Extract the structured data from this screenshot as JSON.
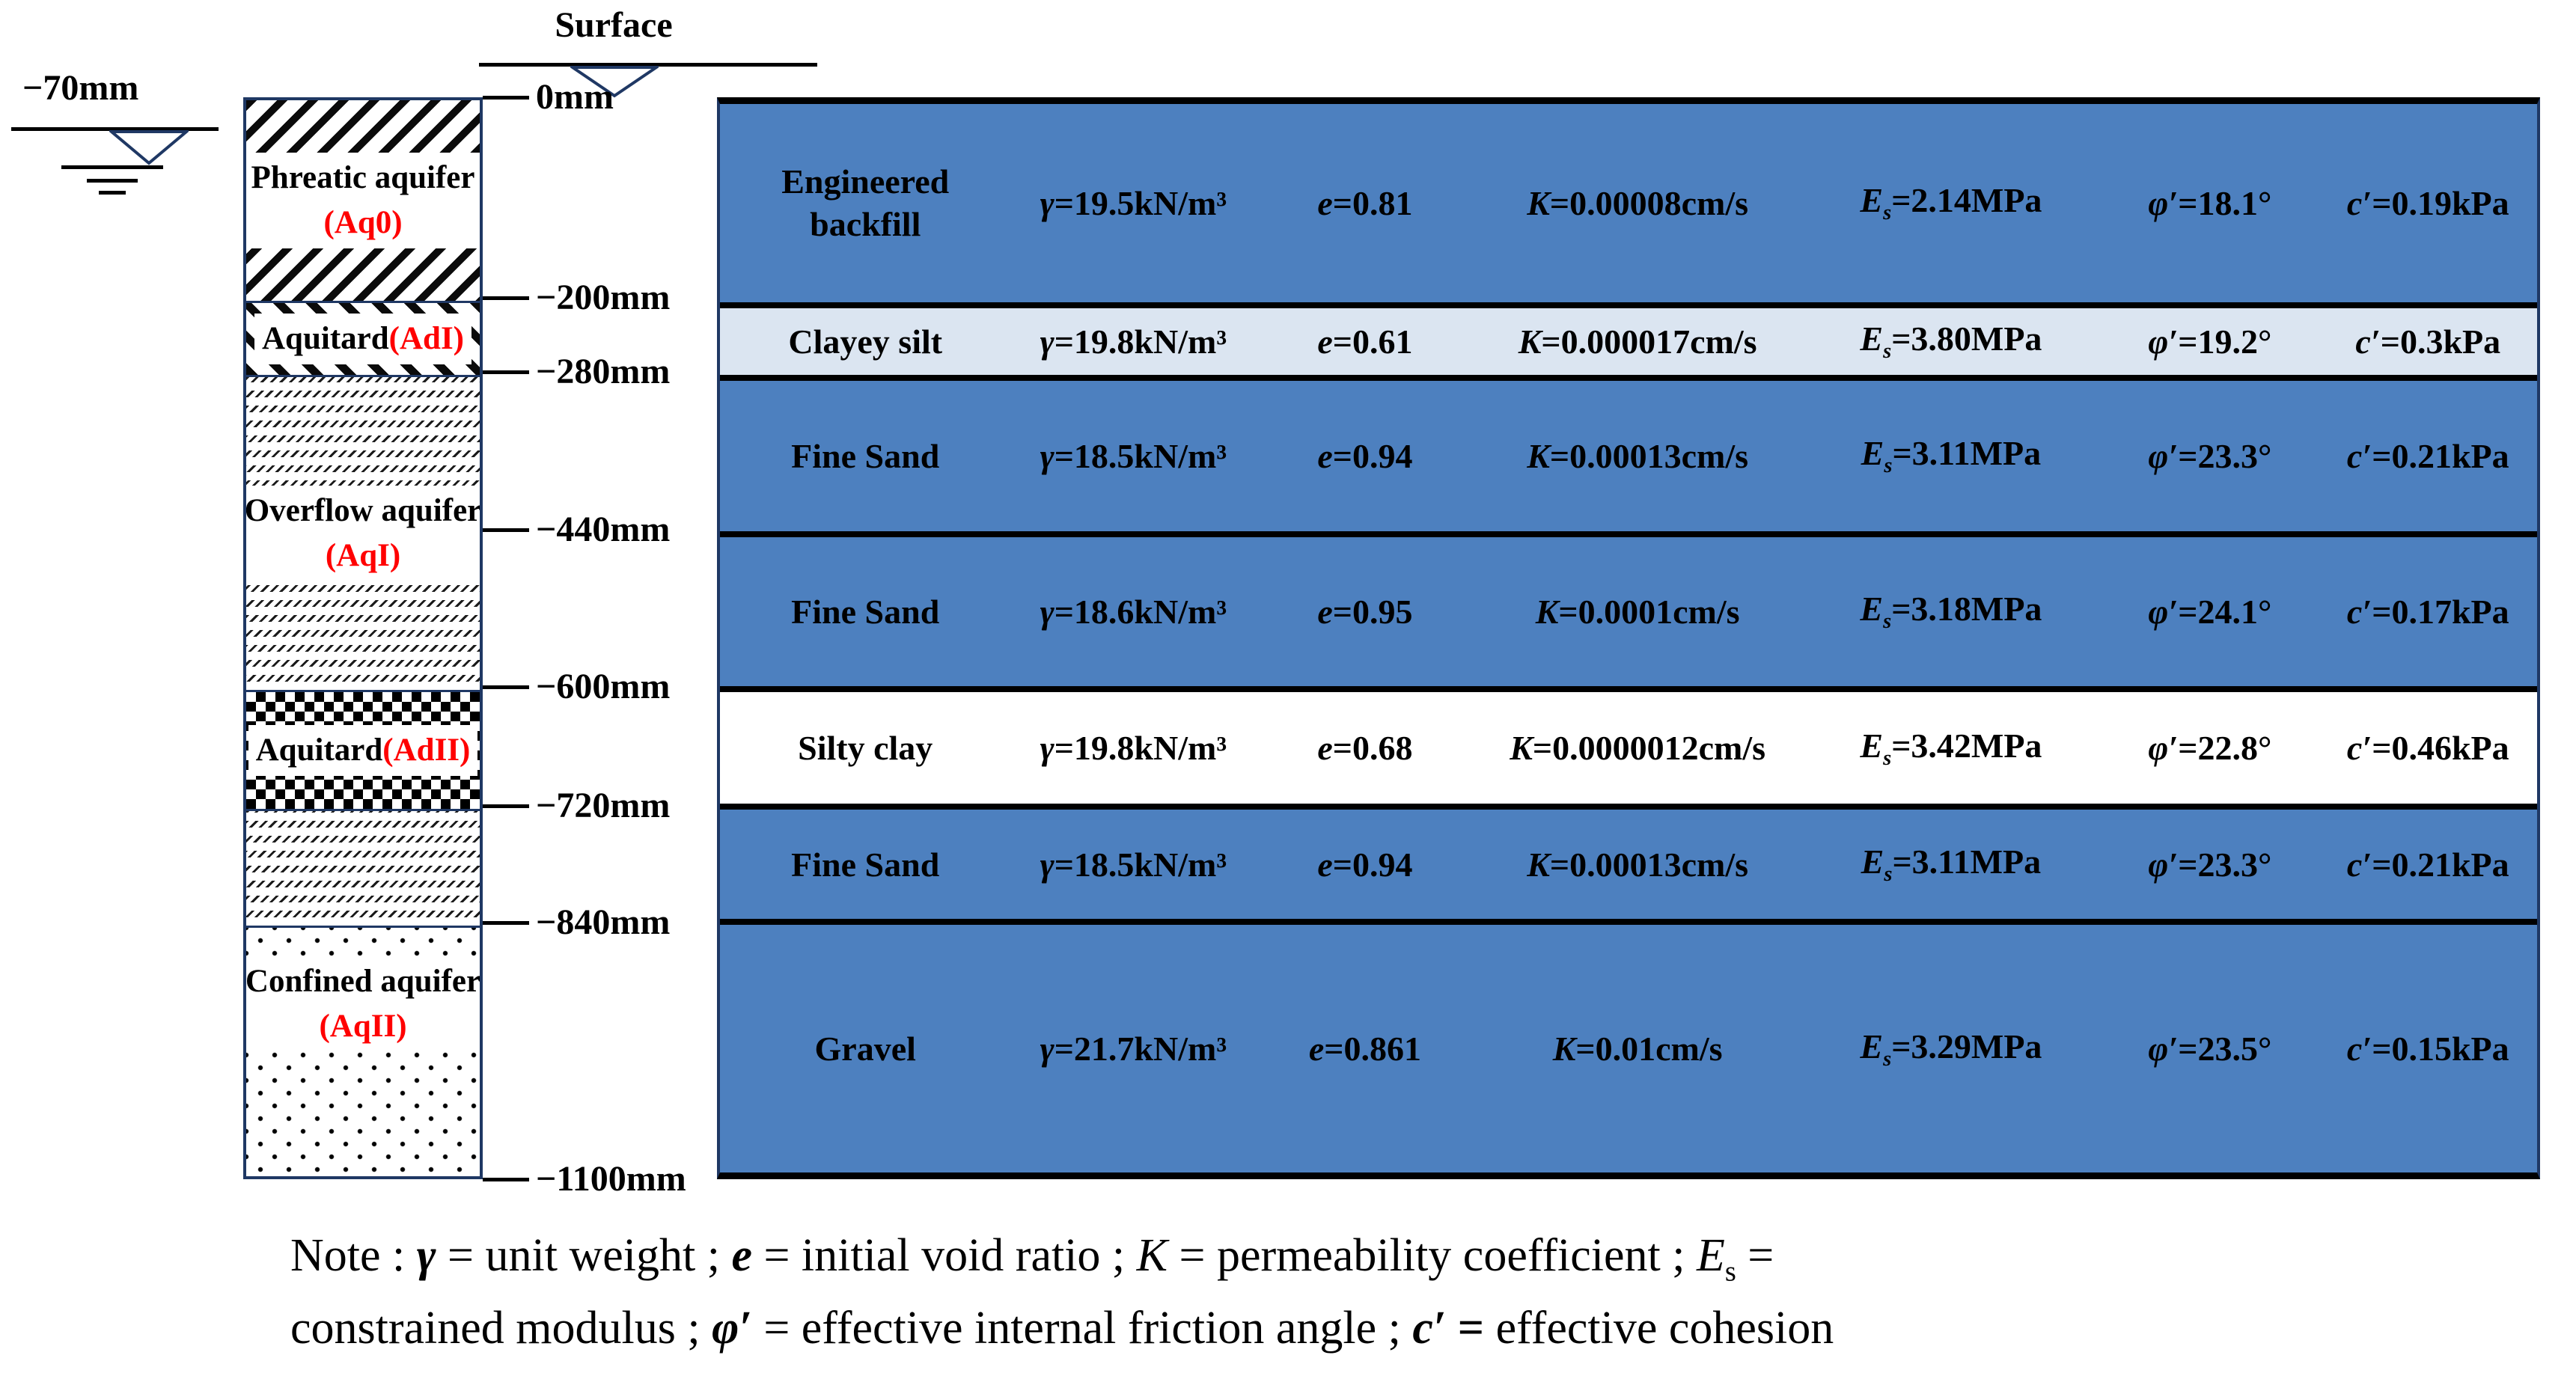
{
  "colors": {
    "row_blue": "#4d80bf",
    "row_light": "#dbe5f1",
    "row_white": "#ffffff",
    "border_navy": "#1f3864",
    "accent_red": "#ff0000",
    "line_black": "#000000"
  },
  "surface": {
    "label": "Surface"
  },
  "groundwater": {
    "label": "−70mm"
  },
  "column": {
    "layers": [
      {
        "name": "Phreatic aquifer",
        "code": "(Aq0)",
        "pattern": "hatch-forward"
      },
      {
        "name": "Aquitard",
        "code": "(AdI)",
        "pattern": "hatch-back"
      },
      {
        "name": "Overflow aquifer",
        "code": "(AqI)",
        "pattern": "silt-dashes"
      },
      {
        "name": "Aquitard",
        "code": "(AdII)",
        "pattern": "checkerboard"
      },
      {
        "name": "",
        "code": "",
        "pattern": "silt-dashes"
      },
      {
        "name": "Confined aquifer",
        "code": "(AqII)",
        "pattern": "dots"
      }
    ],
    "depth_labels": [
      "0mm",
      "−200mm",
      "−280mm",
      "−440mm",
      "−600mm",
      "−720mm",
      "−840mm",
      "−1100mm"
    ]
  },
  "table": {
    "rows": [
      {
        "soil": "Engineered backfill",
        "bg": "blue",
        "cells": [
          {
            "v": "γ",
            "s": "",
            "t": "=19.5kN/m³"
          },
          {
            "v": "e",
            "s": "",
            "t": "=0.81"
          },
          {
            "v": "K",
            "s": "",
            "t": "=0.00008cm/s"
          },
          {
            "v": "E",
            "s": "s",
            "t": "=2.14MPa"
          },
          {
            "v": "φ′",
            "s": "",
            "t": "=18.1°"
          },
          {
            "v": "c′",
            "s": "",
            "t": "=0.19kPa"
          }
        ]
      },
      {
        "soil": "Clayey silt",
        "bg": "light",
        "cells": [
          {
            "v": "γ",
            "s": "",
            "t": "=19.8kN/m³"
          },
          {
            "v": "e",
            "s": "",
            "t": "=0.61"
          },
          {
            "v": "K",
            "s": "",
            "t": "=0.000017cm/s"
          },
          {
            "v": "E",
            "s": "s",
            "t": "=3.80MPa"
          },
          {
            "v": "φ′",
            "s": "",
            "t": "=19.2°"
          },
          {
            "v": "c′",
            "s": "",
            "t": "=0.3kPa"
          }
        ]
      },
      {
        "soil": "Fine Sand",
        "bg": "blue",
        "cells": [
          {
            "v": "γ",
            "s": "",
            "t": "=18.5kN/m³"
          },
          {
            "v": "e",
            "s": "",
            "t": "=0.94"
          },
          {
            "v": "K",
            "s": "",
            "t": "=0.00013cm/s"
          },
          {
            "v": "E",
            "s": "s",
            "t": "=3.11MPa"
          },
          {
            "v": "φ′",
            "s": "",
            "t": "=23.3°"
          },
          {
            "v": "c′",
            "s": "",
            "t": "=0.21kPa"
          }
        ]
      },
      {
        "soil": "Fine Sand",
        "bg": "blue",
        "cells": [
          {
            "v": "γ",
            "s": "",
            "t": "=18.6kN/m³"
          },
          {
            "v": "e",
            "s": "",
            "t": "=0.95"
          },
          {
            "v": "K",
            "s": "",
            "t": "=0.0001cm/s"
          },
          {
            "v": "E",
            "s": "s",
            "t": "=3.18MPa"
          },
          {
            "v": "φ′",
            "s": "",
            "t": "=24.1°"
          },
          {
            "v": "c′",
            "s": "",
            "t": "=0.17kPa"
          }
        ]
      },
      {
        "soil": "Silty clay",
        "bg": "white",
        "cells": [
          {
            "v": "γ",
            "s": "",
            "t": "=19.8kN/m³"
          },
          {
            "v": "e",
            "s": "",
            "t": "=0.68"
          },
          {
            "v": "K",
            "s": "",
            "t": "=0.0000012cm/s"
          },
          {
            "v": "E",
            "s": "s",
            "t": "=3.42MPa"
          },
          {
            "v": "φ′",
            "s": "",
            "t": "=22.8°"
          },
          {
            "v": "c′",
            "s": "",
            "t": "=0.46kPa"
          }
        ]
      },
      {
        "soil": "Fine Sand",
        "bg": "blue",
        "cells": [
          {
            "v": "γ",
            "s": "",
            "t": "=18.5kN/m³"
          },
          {
            "v": "e",
            "s": "",
            "t": "=0.94"
          },
          {
            "v": "K",
            "s": "",
            "t": "=0.00013cm/s"
          },
          {
            "v": "E",
            "s": "s",
            "t": "=3.11MPa"
          },
          {
            "v": "φ′",
            "s": "",
            "t": "=23.3°"
          },
          {
            "v": "c′",
            "s": "",
            "t": "=0.21kPa"
          }
        ]
      },
      {
        "soil": "Gravel",
        "bg": "blue",
        "cells": [
          {
            "v": "γ",
            "s": "",
            "t": "=21.7kN/m³"
          },
          {
            "v": "e",
            "s": "",
            "t": "=0.861"
          },
          {
            "v": "K",
            "s": "",
            "t": "=0.01cm/s"
          },
          {
            "v": "E",
            "s": "s",
            "t": "=3.29MPa"
          },
          {
            "v": "φ′",
            "s": "",
            "t": "=23.5°"
          },
          {
            "v": "c′",
            "s": "",
            "t": "=0.15kPa"
          }
        ]
      }
    ]
  },
  "note": {
    "line1": [
      {
        "t": "Note : "
      },
      {
        "t": "γ",
        "b": true,
        "i": true
      },
      {
        "t": " = unit weight ; "
      },
      {
        "t": "e",
        "b": true,
        "i": true
      },
      {
        "t": " = initial void ratio ; "
      },
      {
        "t": "K",
        "i": true
      },
      {
        "t": " = permeability coefficient ; "
      },
      {
        "t": "E",
        "i": true
      },
      {
        "t": "s",
        "sub": true
      },
      {
        "t": " ="
      }
    ],
    "line2": [
      {
        "t": "constrained modulus ; "
      },
      {
        "t": "φ′",
        "b": true,
        "i": true
      },
      {
        "t": " = effective internal friction angle ; "
      },
      {
        "t": "c′",
        "b": true,
        "i": true
      },
      {
        "t": " = ",
        "b": true
      },
      {
        "t": "effective cohesion"
      }
    ]
  }
}
